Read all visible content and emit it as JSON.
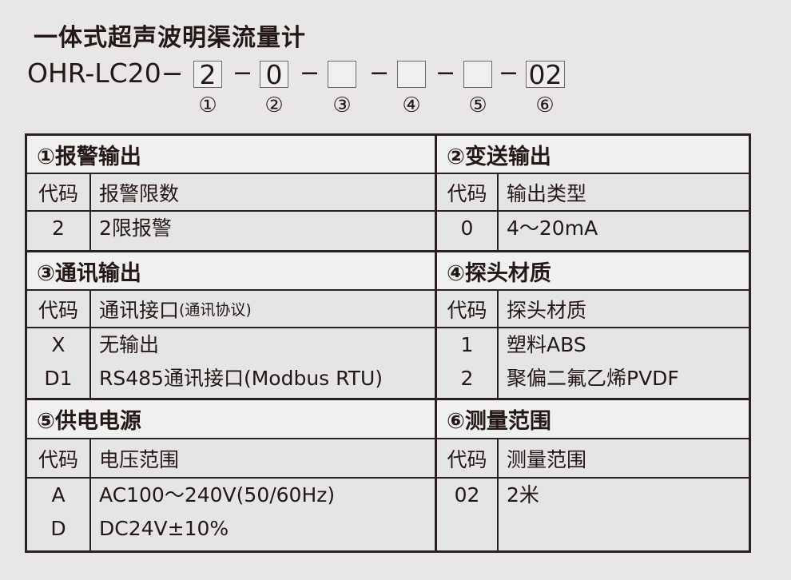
{
  "title": "一体式超声波明渠流量计",
  "model": {
    "prefix": "OHR-LC20−",
    "separator": "−",
    "slots": [
      {
        "value": "2",
        "index": "①"
      },
      {
        "value": "0",
        "index": "②"
      },
      {
        "value": "",
        "index": "③"
      },
      {
        "value": "",
        "index": "④"
      },
      {
        "value": "",
        "index": "⑤"
      },
      {
        "value": "02",
        "index": "⑥"
      }
    ]
  },
  "sections": [
    {
      "title": "①报警输出",
      "code_header": "代码",
      "name_header": "报警限数",
      "rows": [
        {
          "code": "2",
          "name": "2限报警"
        }
      ]
    },
    {
      "title": "②变送输出",
      "code_header": "代码",
      "name_header": "输出类型",
      "rows": [
        {
          "code": "0",
          "name": "4～20mA"
        }
      ]
    },
    {
      "title": "③通讯输出",
      "code_header": "代码",
      "name_header": "通讯接口",
      "name_header_note": "(通讯协议)",
      "rows": [
        {
          "code": "X",
          "name": "无输出"
        },
        {
          "code": "D1",
          "name": "RS485通讯接口(Modbus RTU)"
        }
      ]
    },
    {
      "title": "④探头材质",
      "code_header": "代码",
      "name_header": "探头材质",
      "rows": [
        {
          "code": "1",
          "name": "塑料ABS"
        },
        {
          "code": "2",
          "name": "聚偏二氟乙烯PVDF"
        }
      ]
    },
    {
      "title": "⑤供电电源",
      "code_header": "代码",
      "name_header": "电压范围",
      "rows": [
        {
          "code": "A",
          "name": "AC100～240V(50/60Hz)"
        },
        {
          "code": "D",
          "name": "DC24V±10%"
        }
      ]
    },
    {
      "title": "⑥测量范围",
      "code_header": "代码",
      "name_header": "测量范围",
      "rows": [
        {
          "code": "02",
          "name": "2米"
        }
      ]
    }
  ]
}
